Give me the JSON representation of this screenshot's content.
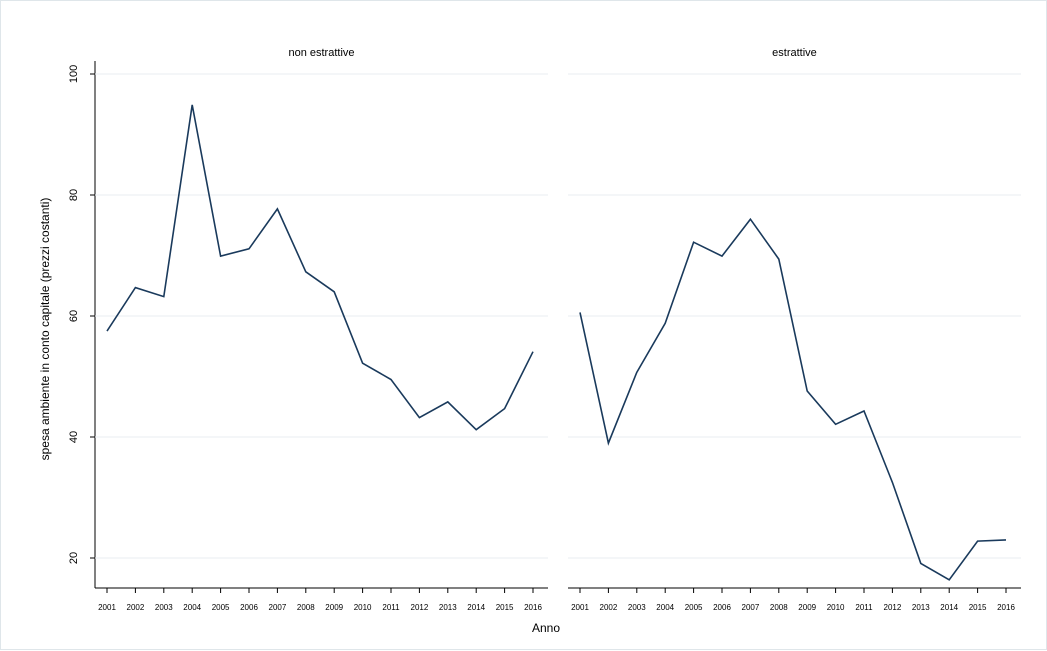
{
  "chart_data": {
    "type": "line",
    "xlabel": "Anno",
    "ylabel": "spesa ambiente in conto capitale (prezzi costanti)",
    "ylim": [
      15,
      100
    ],
    "yticks": [
      20,
      40,
      60,
      80,
      100
    ],
    "x": [
      "2001",
      "2002",
      "2003",
      "2004",
      "2005",
      "2006",
      "2007",
      "2008",
      "2009",
      "2010",
      "2011",
      "2012",
      "2013",
      "2014",
      "2015",
      "2016"
    ],
    "grid": true,
    "line_color": "#1a3a5c",
    "panels": [
      {
        "title": "non estrattive",
        "values": [
          57.5,
          64.7,
          63.2,
          94.9,
          69.9,
          71.1,
          77.7,
          67.3,
          64.0,
          52.2,
          49.5,
          43.2,
          45.8,
          41.2,
          44.7,
          54.1
        ]
      },
      {
        "title": "estrattive",
        "values": [
          60.6,
          39.0,
          50.7,
          58.8,
          72.2,
          69.9,
          76.0,
          69.4,
          47.6,
          42.1,
          44.3,
          32.5,
          19.1,
          16.4,
          22.8,
          23.0
        ]
      }
    ]
  }
}
